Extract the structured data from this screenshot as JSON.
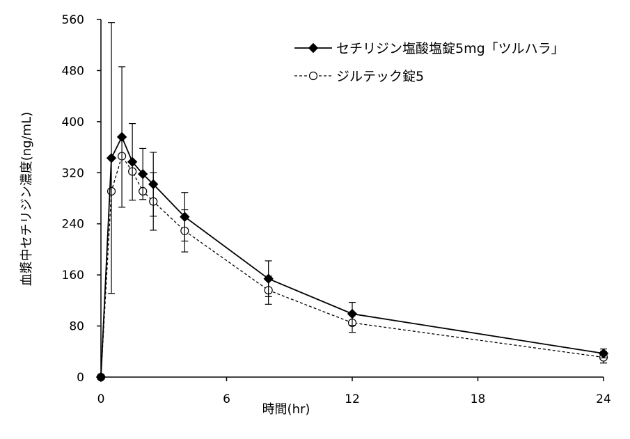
{
  "chart_data": {
    "type": "line",
    "xlabel": "時間(hr)",
    "ylabel": "血漿中セチリジン濃度(ng/mL)",
    "xlim": [
      0,
      24
    ],
    "ylim": [
      0,
      560
    ],
    "xticks": [
      0,
      6,
      12,
      18,
      24
    ],
    "yticks": [
      0,
      80,
      160,
      240,
      320,
      400,
      480,
      560
    ],
    "xtick_labels": [
      "0",
      "6",
      "12",
      "18",
      "24"
    ],
    "ytick_labels": [
      "0",
      "80",
      "160",
      "240",
      "320",
      "400",
      "480",
      "560"
    ],
    "grid": false,
    "legend": "top-right",
    "series": [
      {
        "name": "セチリジン塩酸塩錠5mg「ツルハラ」",
        "marker": "diamond-filled",
        "line": "solid",
        "color": "#000000",
        "x": [
          0,
          0.5,
          1,
          1.5,
          2,
          2.5,
          4,
          8,
          12,
          24
        ],
        "y": [
          0,
          343,
          376,
          337,
          318,
          302,
          251,
          154,
          99,
          37
        ],
        "error": [
          0,
          212,
          110,
          60,
          40,
          50,
          38,
          28,
          18,
          7
        ]
      },
      {
        "name": "ジルテック錠5",
        "marker": "circle-open",
        "line": "dashed",
        "color": "#000000",
        "x": [
          0,
          0.5,
          1,
          1.5,
          2,
          2.5,
          4,
          8,
          12,
          24
        ],
        "y": [
          0,
          291,
          346,
          322,
          291,
          275,
          229,
          136,
          85,
          31
        ],
        "error": [
          0,
          0,
          0,
          0,
          0,
          45,
          33,
          22,
          15,
          9
        ]
      }
    ]
  }
}
